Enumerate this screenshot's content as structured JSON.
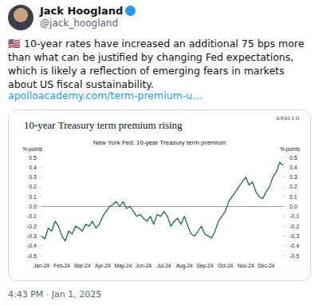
{
  "tweet": {
    "name": "Jack Hoogland",
    "handle": "@jack_hoogland",
    "text": "🇺🇸 10-year rates have increased an additional 75 bps more than what can be justified by changing Fed expectations, which is likely a reflection of emerging fears in markets about US fiscal sustainability.",
    "link": "apolloacademy.com/term-premium-u...",
    "timestamp": "4:43 PM · Jan 1, 2025"
  },
  "chart_data": {
    "type": "line",
    "title": "10-year Treasury term premium rising",
    "subtitle": "New York Fed: 10-year Treasury term premium",
    "annotations": [
      "APOLLO"
    ],
    "ylabel": "%-points",
    "color": "#1f6a43",
    "grid": false,
    "categories": [
      "Jan-24",
      null,
      null,
      null,
      null,
      null,
      "Feb-24",
      null,
      null,
      null,
      null,
      null,
      "Mar-24",
      null,
      null,
      null,
      null,
      null,
      "Apr-24",
      null,
      null,
      null,
      null,
      null,
      "May-24",
      null,
      null,
      null,
      null,
      null,
      "Jun-24",
      null,
      null,
      null,
      null,
      null,
      "Jul-24",
      null,
      null,
      null,
      null,
      null,
      "Aug-24",
      null,
      null,
      null,
      null,
      null,
      "Sep-24",
      null,
      null,
      null,
      null,
      null,
      "Oct-24",
      null,
      null,
      null,
      null,
      null,
      "Nov-24",
      null,
      null,
      null,
      null,
      null,
      "Dec-24",
      null,
      null,
      null,
      null,
      null
    ],
    "values": [
      -0.3,
      -0.33,
      -0.22,
      -0.25,
      -0.15,
      -0.2,
      -0.3,
      -0.35,
      -0.25,
      -0.28,
      -0.2,
      -0.22,
      -0.25,
      -0.18,
      -0.2,
      -0.15,
      -0.22,
      -0.18,
      -0.1,
      -0.05,
      0.0,
      0.02,
      0.05,
      0.0,
      0.05,
      -0.02,
      0.0,
      -0.05,
      -0.1,
      -0.08,
      -0.12,
      -0.15,
      -0.1,
      -0.18,
      -0.08,
      -0.1,
      -0.05,
      -0.1,
      -0.2,
      -0.15,
      -0.12,
      -0.18,
      -0.1,
      -0.2,
      -0.28,
      -0.3,
      -0.25,
      -0.2,
      -0.28,
      -0.3,
      -0.32,
      -0.25,
      -0.15,
      -0.1,
      -0.05,
      0.05,
      0.1,
      0.15,
      0.2,
      0.25,
      0.3,
      0.22,
      0.25,
      0.15,
      0.1,
      0.08,
      0.15,
      0.2,
      0.3,
      0.35,
      0.45,
      0.42
    ],
    "ylim": [
      -0.5,
      0.5
    ],
    "yticks": [
      -0.5,
      -0.4,
      -0.3,
      -0.2,
      -0.1,
      {
        "value": 0,
        "label": "0.0"
      },
      0.1,
      0.2,
      0.3,
      0.4,
      0.5
    ]
  }
}
